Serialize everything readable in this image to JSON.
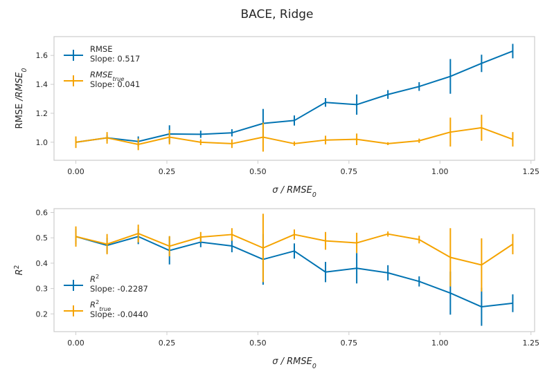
{
  "title": "BACE, Ridge",
  "colors": {
    "series1": "#0173b2",
    "series2": "#f5a300",
    "axes": "#cccccc",
    "text": "#262626"
  },
  "chart_data": [
    {
      "type": "line",
      "ylabel": "RMSE /RMSE_0",
      "xlabel": "σ / RMSE_0",
      "xlim": [
        -0.06,
        1.26
      ],
      "ylim": [
        0.875,
        1.73
      ],
      "xticks": [
        "0.00",
        "0.25",
        "0.50",
        "0.75",
        "1.00",
        "1.25"
      ],
      "yticks": [
        "1.0",
        "1.2",
        "1.4",
        "1.6"
      ],
      "legend_position": "top-left",
      "x": [
        0.0,
        0.0857,
        0.1714,
        0.2571,
        0.3429,
        0.4286,
        0.5143,
        0.6,
        0.6857,
        0.7714,
        0.8571,
        0.9429,
        1.0286,
        1.1143,
        1.2
      ],
      "series": [
        {
          "name": "RMSE",
          "slope_label": "Slope: 0.517",
          "values": [
            1.0,
            1.03,
            1.005,
            1.057,
            1.055,
            1.065,
            1.13,
            1.15,
            1.275,
            1.26,
            1.33,
            1.385,
            1.455,
            1.545,
            1.63
          ],
          "errors": [
            0.0,
            0.02,
            0.035,
            0.06,
            0.025,
            0.025,
            0.1,
            0.035,
            0.03,
            0.07,
            0.03,
            0.03,
            0.12,
            0.06,
            0.05
          ]
        },
        {
          "name": "RMSE_true",
          "slope_label": "Slope: 0.041",
          "values": [
            1.0,
            1.03,
            0.985,
            1.035,
            1.0,
            0.99,
            1.035,
            0.99,
            1.015,
            1.02,
            0.99,
            1.01,
            1.07,
            1.1,
            1.02
          ],
          "errors": [
            0.04,
            0.04,
            0.04,
            0.05,
            0.02,
            0.03,
            0.1,
            0.015,
            0.03,
            0.04,
            0.01,
            0.015,
            0.1,
            0.09,
            0.05
          ]
        }
      ]
    },
    {
      "type": "line",
      "ylabel": "R^2",
      "xlabel": "σ / RMSE_0",
      "xlim": [
        -0.06,
        1.26
      ],
      "ylim": [
        0.13,
        0.615
      ],
      "xticks": [
        "0.00",
        "0.25",
        "0.50",
        "0.75",
        "1.00",
        "1.25"
      ],
      "yticks": [
        "0.2",
        "0.3",
        "0.4",
        "0.5",
        "0.6"
      ],
      "legend_position": "bottom-left",
      "x": [
        0.0,
        0.0857,
        0.1714,
        0.2571,
        0.3429,
        0.4286,
        0.5143,
        0.6,
        0.6857,
        0.7714,
        0.8571,
        0.9429,
        1.0286,
        1.1143,
        1.2
      ],
      "series": [
        {
          "name": "R^2",
          "slope_label": "Slope: -0.2287",
          "values": [
            0.505,
            0.47,
            0.505,
            0.45,
            0.483,
            0.468,
            0.415,
            0.448,
            0.365,
            0.38,
            0.362,
            0.328,
            0.282,
            0.228,
            0.242
          ],
          "errors": [
            0.03,
            0.03,
            0.03,
            0.055,
            0.02,
            0.025,
            0.1,
            0.03,
            0.04,
            0.06,
            0.03,
            0.02,
            0.085,
            0.075,
            0.035
          ]
        },
        {
          "name": "R^2_true",
          "slope_label": "Slope: -0.0440",
          "values": [
            0.505,
            0.475,
            0.517,
            0.467,
            0.503,
            0.513,
            0.46,
            0.513,
            0.488,
            0.48,
            0.515,
            0.493,
            0.423,
            0.393,
            0.475
          ],
          "errors": [
            0.04,
            0.04,
            0.035,
            0.04,
            0.02,
            0.025,
            0.135,
            0.02,
            0.035,
            0.04,
            0.01,
            0.015,
            0.115,
            0.105,
            0.04
          ]
        }
      ]
    }
  ]
}
